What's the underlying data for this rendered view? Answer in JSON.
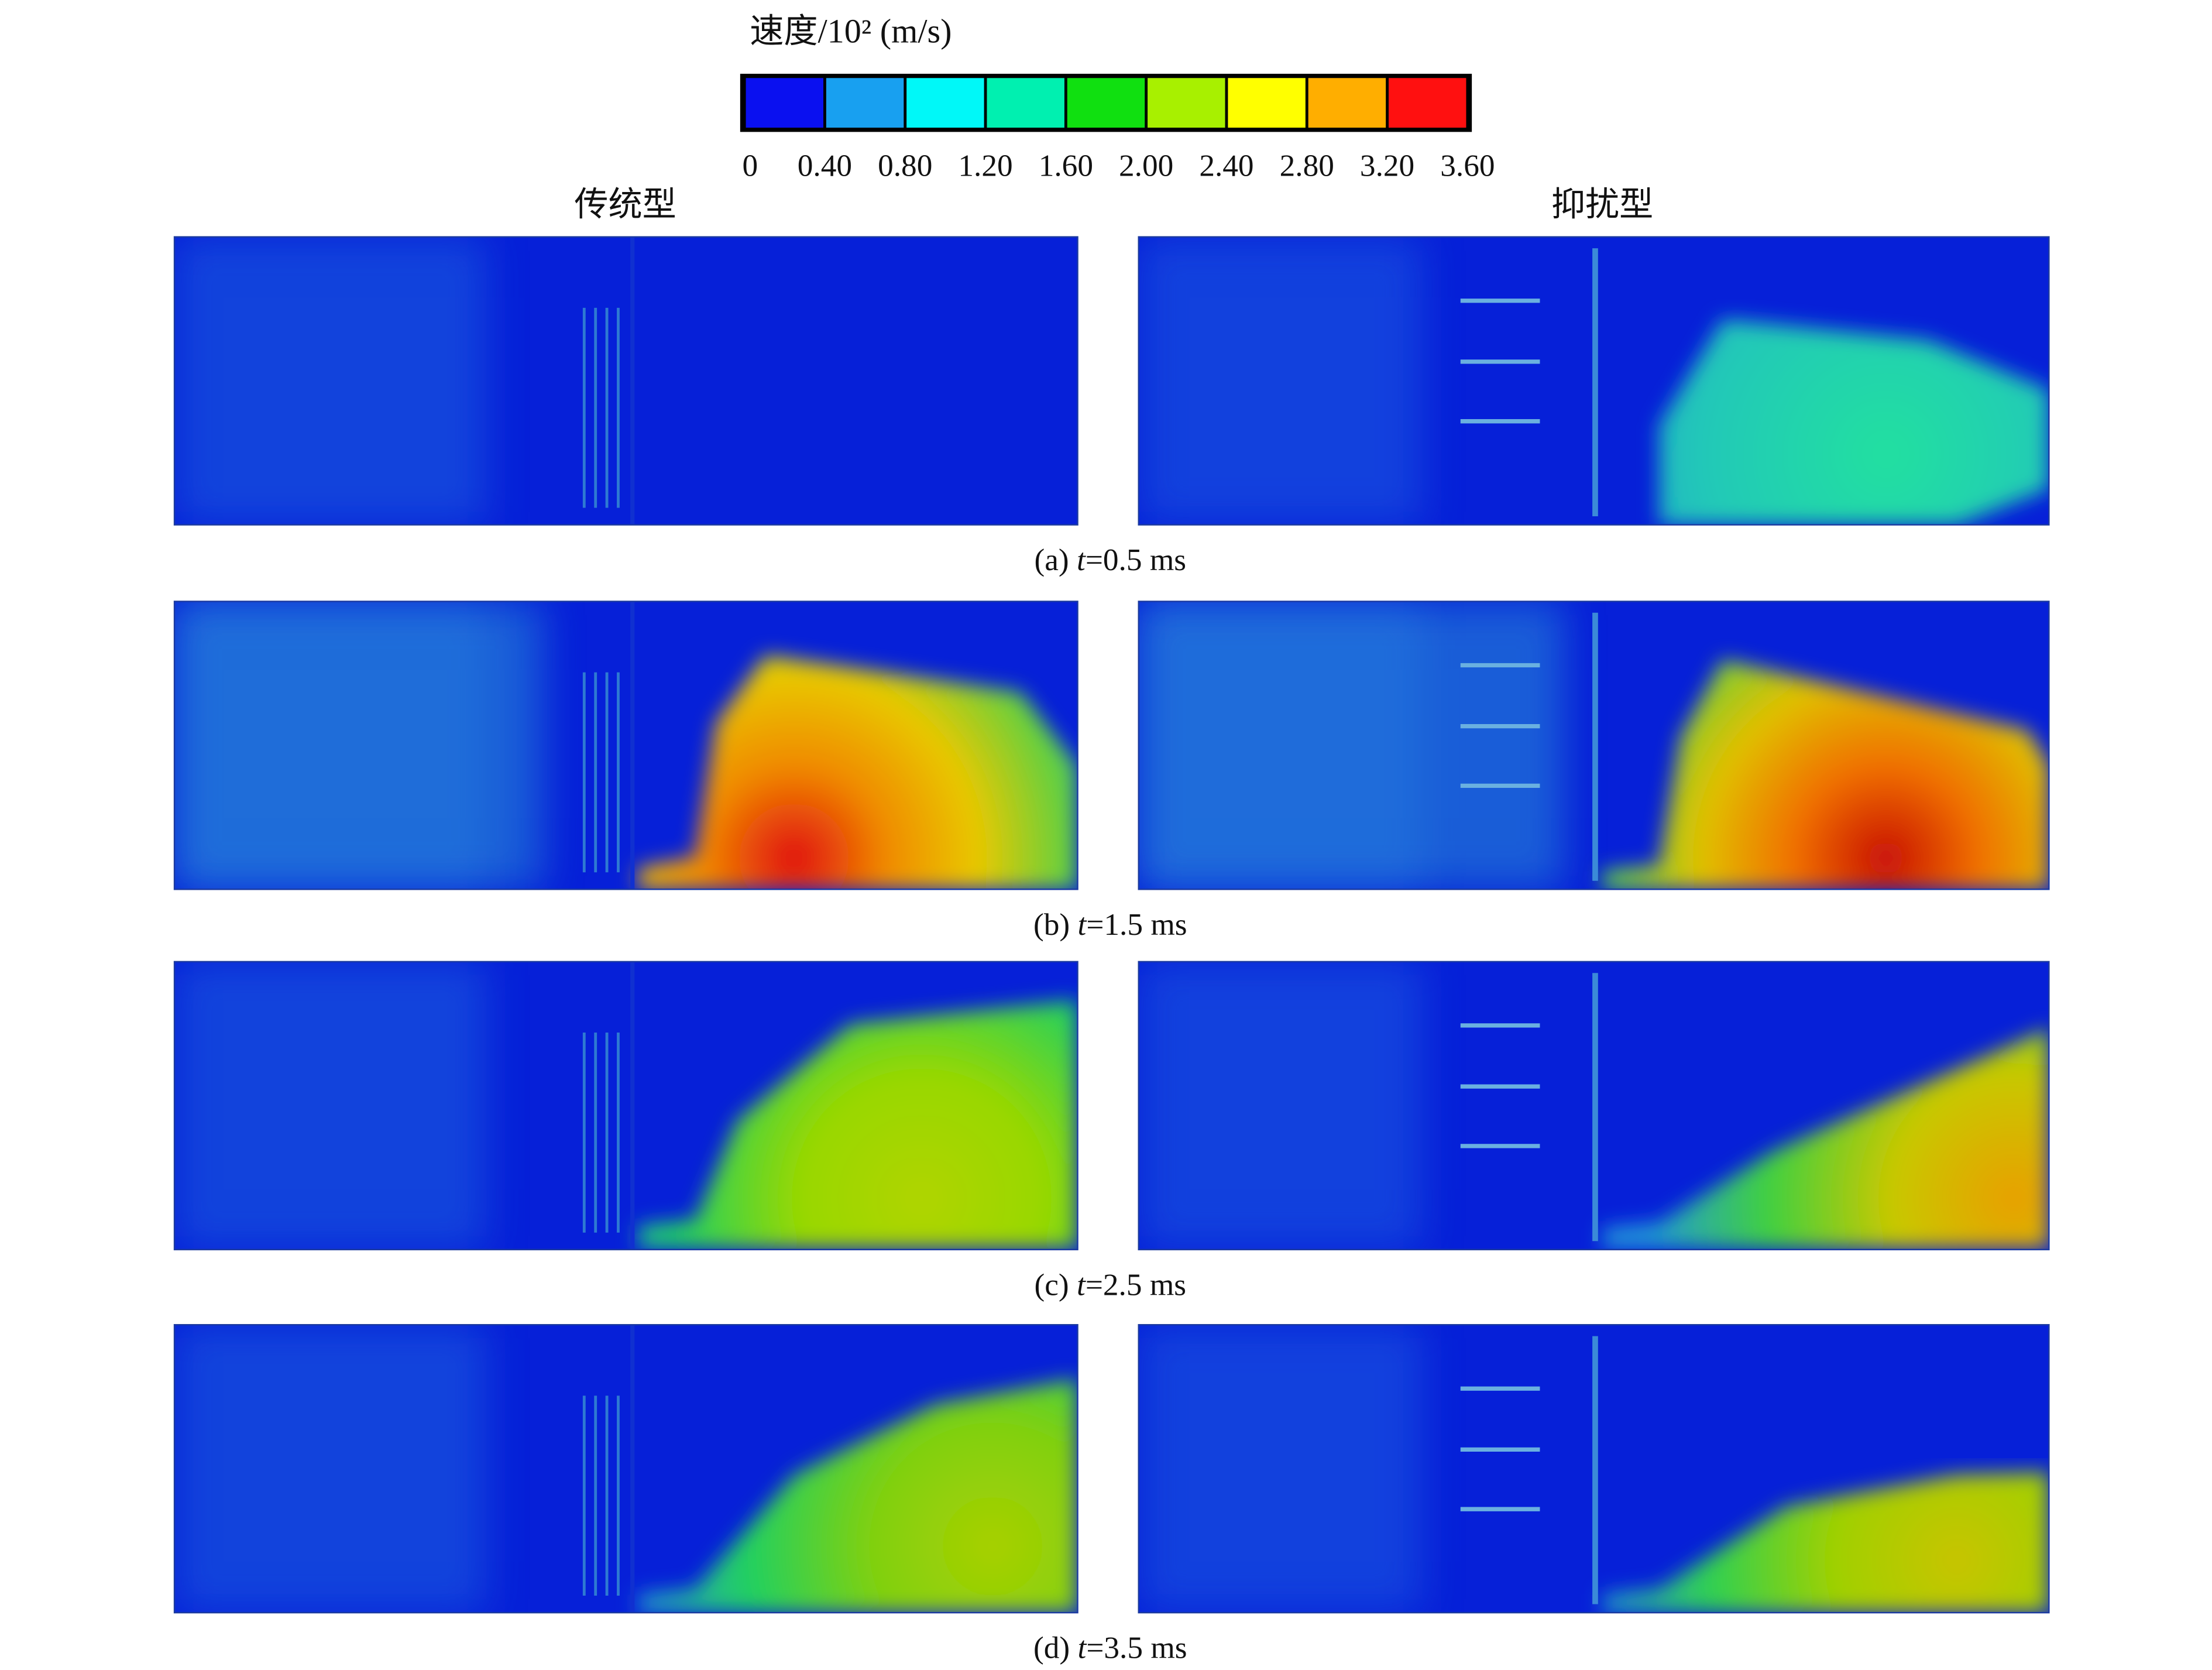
{
  "colorbar": {
    "title": "速度/10² (m/s)",
    "ticks": [
      "0",
      "0.40",
      "0.80",
      "1.20",
      "1.60",
      "2.00",
      "2.40",
      "2.80",
      "3.20",
      "3.60"
    ],
    "colors": [
      "#0a10f0",
      "#18a0f0",
      "#00f8f8",
      "#00f0b0",
      "#10e010",
      "#a8f000",
      "#ffff00",
      "#ffae00",
      "#ff1010"
    ]
  },
  "columns": [
    "传统型",
    "抑扰型"
  ],
  "panels": [
    {
      "parts": [
        "(a) ",
        "t",
        "=0.5 ms"
      ]
    },
    {
      "parts": [
        "(b) ",
        "t",
        "=1.5 ms"
      ]
    },
    {
      "parts": [
        "(c) ",
        "t",
        "=2.5 ms"
      ]
    },
    {
      "parts": [
        "(d) ",
        "t",
        "=3.5 ms"
      ]
    }
  ]
}
